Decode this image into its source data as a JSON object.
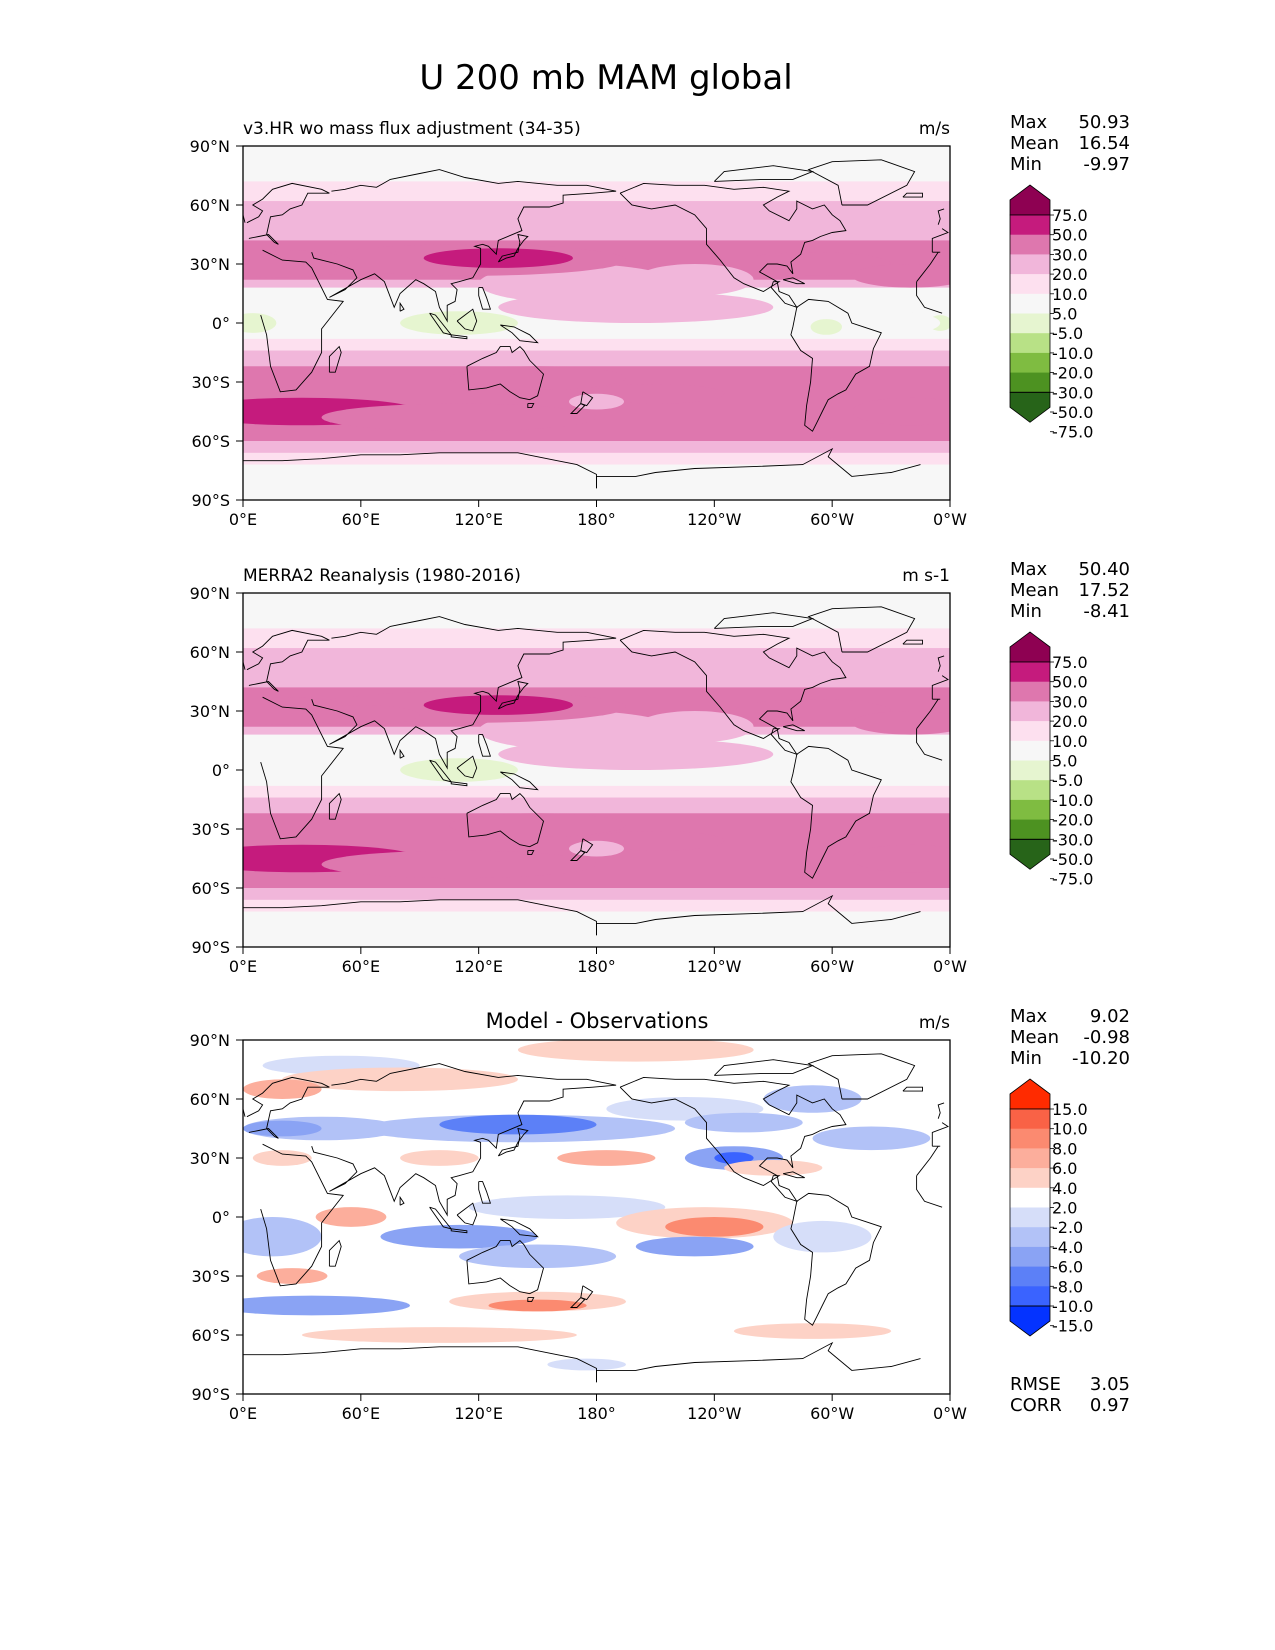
{
  "title": "U 200 mb MAM global",
  "lat_ticks": [
    "90°N",
    "60°N",
    "30°N",
    "0°",
    "30°S",
    "60°S",
    "90°S"
  ],
  "lon_ticks": [
    "0°E",
    "60°E",
    "120°E",
    "180°",
    "120°W",
    "60°W",
    "0°W"
  ],
  "colors": {
    "pink_levels": [
      "#276419",
      "#4d9221",
      "#7fbc41",
      "#b8e186",
      "#e6f5d0",
      "#f7f7f7",
      "#fde0ef",
      "#f1b6da",
      "#de77ae",
      "#c51b7d",
      "#8e0152"
    ],
    "diff_levels": [
      "#0433ff",
      "#3a63ff",
      "#5c80f7",
      "#8aa3f4",
      "#b2c2f7",
      "#d6def9",
      "#ffffff",
      "#fdd2c6",
      "#fcae9c",
      "#fb8a70",
      "#f96246",
      "#ff2b00"
    ],
    "land_line": "#000000"
  },
  "panels": [
    {
      "id": "model",
      "subtitle_left": "v3.HR wo mass flux adjustment (34-35)",
      "subtitle_center": "",
      "units": "m/s",
      "stats": [
        {
          "label": "Max",
          "value": "50.93"
        },
        {
          "label": "Mean",
          "value": "16.54"
        },
        {
          "label": "Min",
          "value": "-9.97"
        }
      ],
      "colorbar_labels": [
        "75.0",
        "50.0",
        "30.0",
        "20.0",
        "10.0",
        "5.0",
        "-5.0",
        "-10.0",
        "-20.0",
        "-30.0",
        "-50.0",
        "-75.0"
      ],
      "bottom_stats": []
    },
    {
      "id": "obs",
      "subtitle_left": "MERRA2 Reanalysis (1980-2016)",
      "subtitle_center": "",
      "units": "m s-1",
      "stats": [
        {
          "label": "Max",
          "value": "50.40"
        },
        {
          "label": "Mean",
          "value": "17.52"
        },
        {
          "label": "Min",
          "value": "-8.41"
        }
      ],
      "colorbar_labels": [
        "75.0",
        "50.0",
        "30.0",
        "20.0",
        "10.0",
        "5.0",
        "-5.0",
        "-10.0",
        "-20.0",
        "-30.0",
        "-50.0",
        "-75.0"
      ],
      "bottom_stats": []
    },
    {
      "id": "diff",
      "subtitle_left": "",
      "subtitle_center": "Model - Observations",
      "units": "m/s",
      "stats": [
        {
          "label": "Max",
          "value": "9.02"
        },
        {
          "label": "Mean",
          "value": "-0.98"
        },
        {
          "label": "Min",
          "value": "-10.20"
        }
      ],
      "colorbar_labels": [
        "15.0",
        "10.0",
        "8.0",
        "6.0",
        "4.0",
        "2.0",
        "-2.0",
        "-4.0",
        "-6.0",
        "-8.0",
        "-10.0",
        "-15.0"
      ],
      "bottom_stats": [
        {
          "label": "RMSE",
          "value": "3.05"
        },
        {
          "label": "CORR",
          "value": "0.97"
        }
      ]
    }
  ],
  "chart_data": [
    {
      "type": "heatmap",
      "title": "v3.HR wo mass flux adjustment (34-35)",
      "units": "m/s",
      "xlabel": "",
      "ylabel": "",
      "xlim": [
        0,
        360
      ],
      "ylim": [
        -90,
        90
      ],
      "levels": [
        -75,
        -50,
        -30,
        -20,
        -10,
        -5,
        5,
        10,
        20,
        30,
        50,
        75
      ],
      "stats": {
        "max": 50.93,
        "mean": 16.54,
        "min": -9.97
      },
      "zonal_profile": {
        "lat": [
          -90,
          -75,
          -60,
          -45,
          -30,
          -15,
          0,
          15,
          30,
          45,
          60,
          75,
          90
        ],
        "u": [
          0,
          8,
          22,
          30,
          24,
          12,
          2,
          12,
          33,
          24,
          14,
          8,
          3
        ]
      }
    },
    {
      "type": "heatmap",
      "title": "MERRA2 Reanalysis (1980-2016)",
      "units": "m s-1",
      "xlabel": "",
      "ylabel": "",
      "xlim": [
        0,
        360
      ],
      "ylim": [
        -90,
        90
      ],
      "levels": [
        -75,
        -50,
        -30,
        -20,
        -10,
        -5,
        5,
        10,
        20,
        30,
        50,
        75
      ],
      "stats": {
        "max": 50.4,
        "mean": 17.52,
        "min": -8.41
      },
      "zonal_profile": {
        "lat": [
          -90,
          -75,
          -60,
          -45,
          -30,
          -15,
          0,
          15,
          30,
          45,
          60,
          75,
          90
        ],
        "u": [
          0,
          9,
          24,
          32,
          24,
          12,
          2,
          12,
          32,
          24,
          14,
          8,
          3
        ]
      }
    },
    {
      "type": "heatmap",
      "title": "Model - Observations",
      "units": "m/s",
      "xlabel": "",
      "ylabel": "",
      "xlim": [
        0,
        360
      ],
      "ylim": [
        -90,
        90
      ],
      "levels": [
        -15,
        -10,
        -8,
        -6,
        -4,
        -2,
        2,
        4,
        6,
        8,
        10,
        15
      ],
      "stats": {
        "max": 9.02,
        "mean": -0.98,
        "min": -10.2,
        "rmse": 3.05,
        "corr": 0.97
      }
    }
  ]
}
